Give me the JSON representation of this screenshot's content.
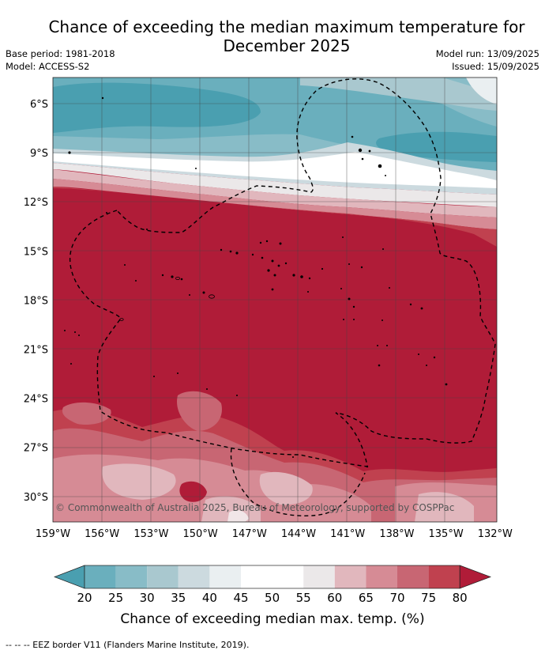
{
  "header": {
    "title_line1": "Chance of exceeding the median maximum temperature for",
    "title_line2": "December 2025",
    "base_period": "Base period: 1981-2018",
    "model": "Model: ACCESS-S2",
    "model_run": "Model run: 13/09/2025",
    "issued": "Issued: 15/09/2025"
  },
  "map": {
    "lon_ticks": [
      "159°W",
      "156°W",
      "153°W",
      "150°W",
      "147°W",
      "144°W",
      "141°W",
      "138°W",
      "135°W",
      "132°W"
    ],
    "lat_ticks": [
      "6°S",
      "9°S",
      "12°S",
      "15°S",
      "18°S",
      "21°S",
      "24°S",
      "27°S",
      "30°S"
    ],
    "copyright": "© Commonwealth of Australia 2025, Bureau of Meteorology, supported by COSPPac"
  },
  "colorbar": {
    "labels": [
      "20",
      "25",
      "30",
      "35",
      "40",
      "45",
      "50",
      "55",
      "60",
      "65",
      "70",
      "75",
      "80"
    ],
    "colors": [
      "#4a9fb0",
      "#6aafbd",
      "#88bcc7",
      "#a9c8cf",
      "#ccdadf",
      "#eaeff1",
      "#ffffff",
      "#ffffff",
      "#ebe8e9",
      "#e1b7bd",
      "#d68b95",
      "#c86673",
      "#c0414f",
      "#b01c38"
    ],
    "title": "Chance of exceeding median max. temp. (%)"
  },
  "footer": {
    "legend": "-- -- -- EEZ border V11 (Flanders Marine Institute, 2019)."
  }
}
